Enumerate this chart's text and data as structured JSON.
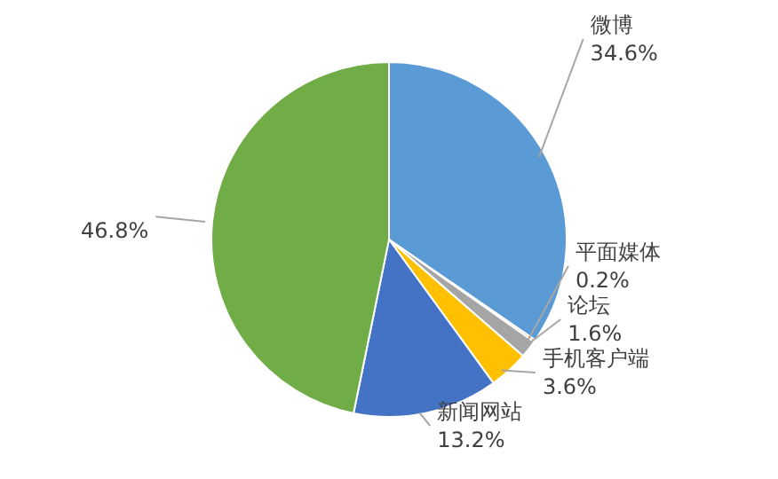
{
  "chart_data": {
    "type": "pie",
    "categories": [
      "微博",
      "平面媒体",
      "论坛",
      "手机客户端",
      "新闻网站",
      null
    ],
    "values": [
      34.6,
      0.2,
      1.6,
      3.6,
      13.2,
      46.8
    ],
    "value_labels": [
      "34.6%",
      "0.2%",
      "1.6%",
      "3.6%",
      "13.2%",
      "46.8%"
    ],
    "colors": [
      "#5b9bd5",
      "#ed7d31",
      "#a5a5a5",
      "#ffc000",
      "#4472c4",
      "#70ad47"
    ]
  }
}
